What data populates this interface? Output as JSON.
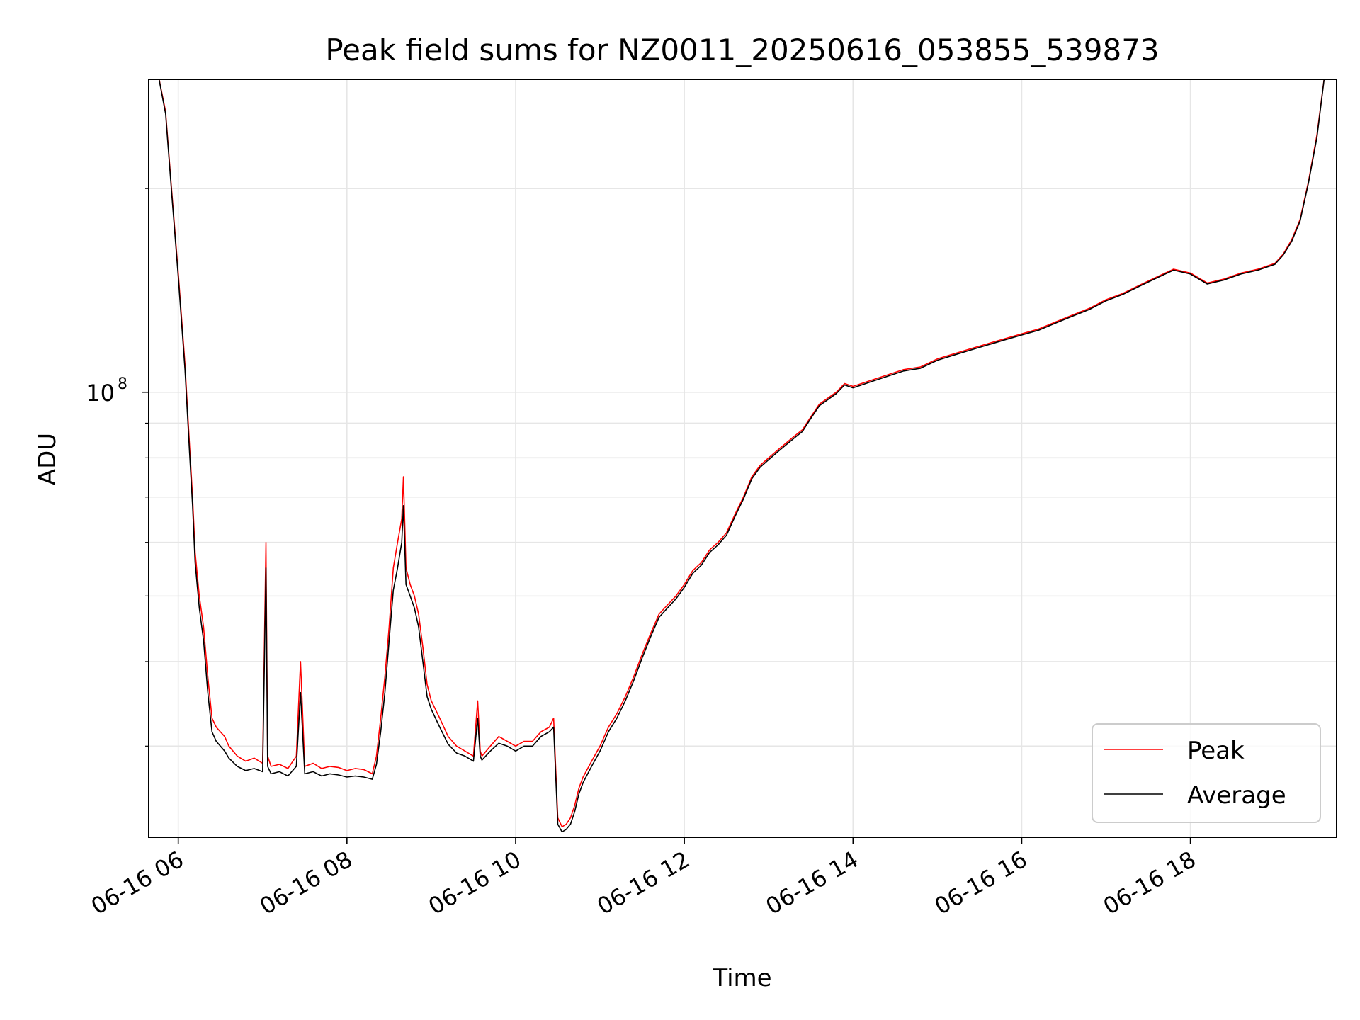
{
  "chart_data": {
    "type": "line",
    "title": "Peak field sums for NZ0011_20250616_053855_539873",
    "xlabel": "Time",
    "ylabel": "ADU",
    "yscale": "log",
    "ylim": [
      22000000,
      290000000
    ],
    "xlim": [
      "06-16 05:39",
      "06-16 19:44"
    ],
    "x_ticks": [
      "06-16 06",
      "06-16 08",
      "06-16 10",
      "06-16 12",
      "06-16 14",
      "06-16 16",
      "06-16 18"
    ],
    "y_major_tick": {
      "label": "10",
      "exponent": "8",
      "value": 100000000
    },
    "y_minor_ticks": [
      30000000,
      40000000,
      50000000,
      60000000,
      70000000,
      80000000,
      90000000,
      200000000
    ],
    "grid": true,
    "legend_position": "bottom-right",
    "x_unit": "hours since 06-16 00:00",
    "series": [
      {
        "name": "Peak",
        "color": "#ff0000",
        "x": [
          5.75,
          5.85,
          5.92,
          6.0,
          6.08,
          6.13,
          6.17,
          6.2,
          6.25,
          6.3,
          6.35,
          6.4,
          6.45,
          6.5,
          6.55,
          6.6,
          6.7,
          6.8,
          6.9,
          7.0,
          7.04,
          7.06,
          7.1,
          7.2,
          7.3,
          7.4,
          7.45,
          7.5,
          7.6,
          7.7,
          7.8,
          7.9,
          8.0,
          8.1,
          8.2,
          8.3,
          8.35,
          8.4,
          8.45,
          8.5,
          8.55,
          8.6,
          8.65,
          8.67,
          8.7,
          8.75,
          8.8,
          8.85,
          8.9,
          8.95,
          9.0,
          9.1,
          9.2,
          9.3,
          9.4,
          9.5,
          9.55,
          9.58,
          9.6,
          9.7,
          9.8,
          9.9,
          10.0,
          10.1,
          10.2,
          10.3,
          10.4,
          10.45,
          10.5,
          10.55,
          10.6,
          10.65,
          10.7,
          10.75,
          10.8,
          10.9,
          11.0,
          11.1,
          11.2,
          11.3,
          11.4,
          11.5,
          11.6,
          11.7,
          11.8,
          11.9,
          12.0,
          12.1,
          12.2,
          12.3,
          12.4,
          12.5,
          12.6,
          12.7,
          12.8,
          12.9,
          13.0,
          13.1,
          13.2,
          13.3,
          13.4,
          13.5,
          13.6,
          13.7,
          13.8,
          13.9,
          14.0,
          14.2,
          14.4,
          14.6,
          14.8,
          15.0,
          15.2,
          15.4,
          15.6,
          15.8,
          16.0,
          16.2,
          16.4,
          16.6,
          16.8,
          17.0,
          17.2,
          17.4,
          17.6,
          17.8,
          18.0,
          18.2,
          18.4,
          18.6,
          18.8,
          19.0,
          19.1,
          19.2,
          19.3,
          19.4,
          19.5,
          19.6,
          19.73
        ],
        "y": [
          300000000,
          260000000,
          200000000,
          150000000,
          110000000,
          85000000,
          70000000,
          58000000,
          50000000,
          45000000,
          38000000,
          33000000,
          32000000,
          31500000,
          31000000,
          30000000,
          29000000,
          28500000,
          28800000,
          28300000,
          60000000,
          29000000,
          28000000,
          28200000,
          27800000,
          29000000,
          40000000,
          28000000,
          28300000,
          27800000,
          28000000,
          27900000,
          27600000,
          27800000,
          27700000,
          27300000,
          29000000,
          33000000,
          38000000,
          45000000,
          55000000,
          60000000,
          65000000,
          75000000,
          55000000,
          52000000,
          50000000,
          47000000,
          42000000,
          37000000,
          35000000,
          33000000,
          31000000,
          30000000,
          29500000,
          29000000,
          35000000,
          29500000,
          29000000,
          30000000,
          31000000,
          30500000,
          30000000,
          30500000,
          30500000,
          31500000,
          32000000,
          33000000,
          23500000,
          22800000,
          23000000,
          23500000,
          24500000,
          26000000,
          27000000,
          28500000,
          30000000,
          32000000,
          33500000,
          35500000,
          38000000,
          41000000,
          44000000,
          47000000,
          48500000,
          50000000,
          52000000,
          54500000,
          56000000,
          58500000,
          60000000,
          62000000,
          66000000,
          70000000,
          75000000,
          78000000,
          80000000,
          82000000,
          84000000,
          86000000,
          88000000,
          92000000,
          96000000,
          98000000,
          100000000,
          103000000,
          102000000,
          104000000,
          106000000,
          108000000,
          109000000,
          112000000,
          114000000,
          116000000,
          118000000,
          120000000,
          122000000,
          124000000,
          127000000,
          130000000,
          133000000,
          137000000,
          140000000,
          144000000,
          148000000,
          152000000,
          150000000,
          145000000,
          147000000,
          150000000,
          152000000,
          155000000,
          160000000,
          168000000,
          180000000,
          205000000,
          240000000,
          300000000,
          300000000
        ]
      },
      {
        "name": "Average",
        "color": "#000000",
        "x": [
          5.75,
          5.85,
          5.92,
          6.0,
          6.08,
          6.13,
          6.17,
          6.2,
          6.25,
          6.3,
          6.35,
          6.4,
          6.45,
          6.5,
          6.55,
          6.6,
          6.7,
          6.8,
          6.9,
          7.0,
          7.04,
          7.06,
          7.1,
          7.2,
          7.3,
          7.4,
          7.45,
          7.5,
          7.6,
          7.7,
          7.8,
          7.9,
          8.0,
          8.1,
          8.2,
          8.3,
          8.35,
          8.4,
          8.45,
          8.5,
          8.55,
          8.6,
          8.65,
          8.67,
          8.7,
          8.75,
          8.8,
          8.85,
          8.9,
          8.95,
          9.0,
          9.1,
          9.2,
          9.3,
          9.4,
          9.5,
          9.55,
          9.58,
          9.6,
          9.7,
          9.8,
          9.9,
          10.0,
          10.1,
          10.2,
          10.3,
          10.4,
          10.45,
          10.5,
          10.55,
          10.6,
          10.65,
          10.7,
          10.75,
          10.8,
          10.9,
          11.0,
          11.1,
          11.2,
          11.3,
          11.4,
          11.5,
          11.6,
          11.7,
          11.8,
          11.9,
          12.0,
          12.1,
          12.2,
          12.3,
          12.4,
          12.5,
          12.6,
          12.7,
          12.8,
          12.9,
          13.0,
          13.1,
          13.2,
          13.3,
          13.4,
          13.5,
          13.6,
          13.7,
          13.8,
          13.9,
          14.0,
          14.2,
          14.4,
          14.6,
          14.8,
          15.0,
          15.2,
          15.4,
          15.6,
          15.8,
          16.0,
          16.2,
          16.4,
          16.6,
          16.8,
          17.0,
          17.2,
          17.4,
          17.6,
          17.8,
          18.0,
          18.2,
          18.4,
          18.6,
          18.8,
          19.0,
          19.1,
          19.2,
          19.3,
          19.4,
          19.5,
          19.6,
          19.73
        ],
        "y": [
          300000000,
          258000000,
          198000000,
          148000000,
          108000000,
          83000000,
          68000000,
          56000000,
          48000000,
          43000000,
          36000000,
          31500000,
          30500000,
          30000000,
          29500000,
          28800000,
          28000000,
          27600000,
          27800000,
          27500000,
          55000000,
          28000000,
          27300000,
          27500000,
          27100000,
          28000000,
          36000000,
          27300000,
          27500000,
          27100000,
          27300000,
          27200000,
          27000000,
          27100000,
          27000000,
          26800000,
          28200000,
          31500000,
          36000000,
          43000000,
          51000000,
          55000000,
          60000000,
          68000000,
          52000000,
          50000000,
          48000000,
          45000000,
          40000000,
          35500000,
          34000000,
          32000000,
          30200000,
          29300000,
          29000000,
          28500000,
          33000000,
          29000000,
          28600000,
          29500000,
          30300000,
          30000000,
          29500000,
          30000000,
          30000000,
          31000000,
          31500000,
          32000000,
          23000000,
          22400000,
          22600000,
          23000000,
          24000000,
          25500000,
          26500000,
          28000000,
          29500000,
          31500000,
          33000000,
          35000000,
          37500000,
          40500000,
          43500000,
          46500000,
          48000000,
          49500000,
          51500000,
          54000000,
          55500000,
          58000000,
          59500000,
          61500000,
          65500000,
          69500000,
          74500000,
          77500000,
          79500000,
          81500000,
          83500000,
          85500000,
          87500000,
          91500000,
          95500000,
          97500000,
          99500000,
          102500000,
          101500000,
          103500000,
          105500000,
          107500000,
          108500000,
          111500000,
          113500000,
          115500000,
          117500000,
          119500000,
          121500000,
          123500000,
          126500000,
          129500000,
          132500000,
          136500000,
          139500000,
          143500000,
          147500000,
          151500000,
          149500000,
          144500000,
          146500000,
          149500000,
          151500000,
          154500000,
          159500000,
          167000000,
          179000000,
          204000000,
          238000000,
          300000000,
          300000000
        ]
      }
    ]
  }
}
